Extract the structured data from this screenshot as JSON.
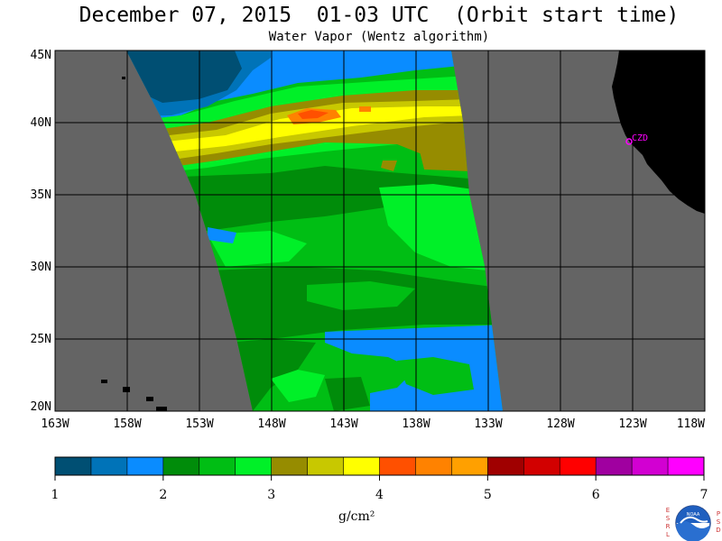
{
  "title": "December 07, 2015  01-03 UTC  (Orbit start time)",
  "subtitle": "Water Vapor (Wentz algorithm)",
  "lat_labels": [
    "45N",
    "40N",
    "35N",
    "30N",
    "25N",
    "20N"
  ],
  "lon_labels": [
    "163W",
    "158W",
    "153W",
    "148W",
    "143W",
    "138W",
    "133W",
    "128W",
    "123W",
    "118W"
  ],
  "station_label": "CZD",
  "colorbar": {
    "ticks": [
      "1",
      "2",
      "3",
      "4",
      "5",
      "6",
      "7"
    ],
    "units": "g/cm²",
    "colors": [
      "#004f73",
      "#0073b8",
      "#0a8cff",
      "#008c0a",
      "#00be14",
      "#00f028",
      "#968c00",
      "#c8c800",
      "#ffff00",
      "#ff5000",
      "#ff8200",
      "#ffa000",
      "#a00000",
      "#d20000",
      "#ff0000",
      "#a000a0",
      "#d200d2",
      "#ff00ff"
    ]
  },
  "logo": {
    "letters_left": [
      "E",
      "S",
      "R",
      "L"
    ],
    "letters_right": [
      "P",
      "S",
      "D"
    ],
    "center": "NOAA"
  },
  "colors": {
    "land": "#000000",
    "no_data": "#646464",
    "station": "#ff00ff"
  }
}
